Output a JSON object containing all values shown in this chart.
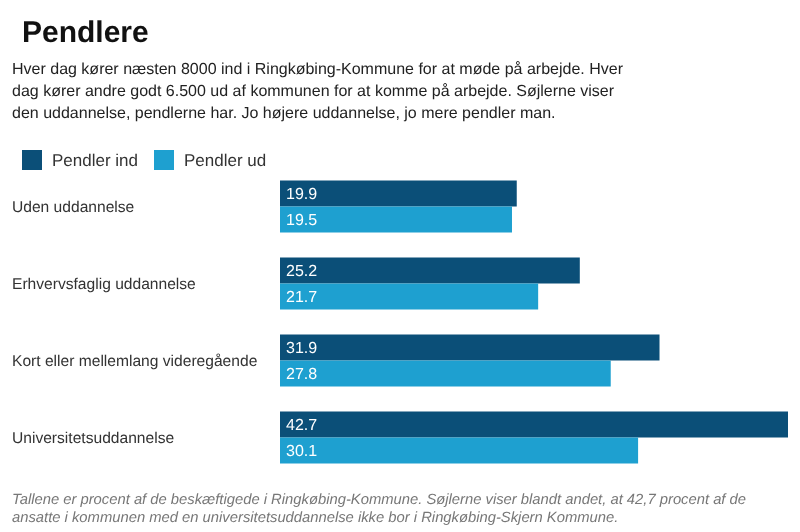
{
  "chart_data": {
    "type": "bar",
    "orientation": "horizontal",
    "title": "Pendlere",
    "subtitle": "Hver dag kører næsten 8000 ind i Ringkøbing-Kommune for at møde på arbejde. Hver dag kører andre godt 6.500 ud af kommunen for at komme på arbejde. Søjlerne viser den uddannelse, pendlerne har. Jo højere uddannelse, jo mere pendler man.",
    "categories": [
      "Uden uddannelse",
      "Erhvervsfaglig uddannelse",
      "Kort eller mellemlang videregående",
      "Universitetsuddannelse"
    ],
    "series": [
      {
        "name": "Pendler ind",
        "color": "#0b4f78",
        "values": [
          19.9,
          25.2,
          31.9,
          42.7
        ]
      },
      {
        "name": "Pendler ud",
        "color": "#1ea0d0",
        "values": [
          19.5,
          21.7,
          27.8,
          30.1
        ]
      }
    ],
    "data_labels": true,
    "legend": "top left",
    "annotations": [
      "Tallene er procent af de beskæftigede i Ringkøbing-Kommune. Søjlerne viser blandt andet, at 42,7 procent af de ansatte i kommunen med en universitetsuddannelse ikke bor i Ringkøbing-Skjern Kommune."
    ]
  }
}
